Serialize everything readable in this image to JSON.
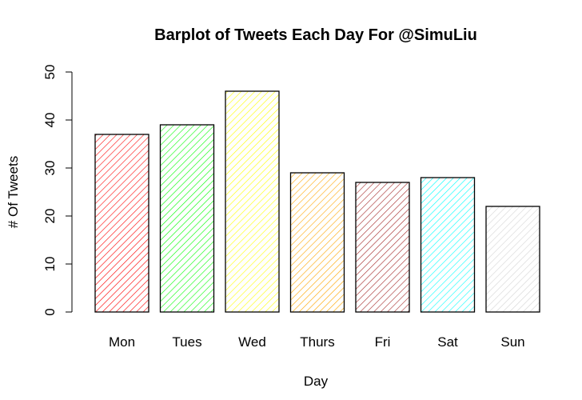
{
  "chart_data": {
    "type": "bar",
    "title": "Barplot of Tweets Each Day For @SimuLiu",
    "xlabel": "Day",
    "ylabel": "# Of Tweets",
    "categories": [
      "Mon",
      "Tues",
      "Wed",
      "Thurs",
      "Fri",
      "Sat",
      "Sun"
    ],
    "values": [
      37,
      39,
      46,
      29,
      27,
      28,
      22
    ],
    "colors": [
      "#ff0000",
      "#00ff00",
      "#ffff00",
      "#ffa500",
      "#a52a2a",
      "#00ffff",
      "#d3d3d3"
    ],
    "fill_pattern": "diagonal-hatch",
    "ylim": [
      0,
      50
    ],
    "yticks": [
      0,
      10,
      20,
      30,
      40,
      50
    ],
    "grid": false,
    "legend": "none"
  }
}
